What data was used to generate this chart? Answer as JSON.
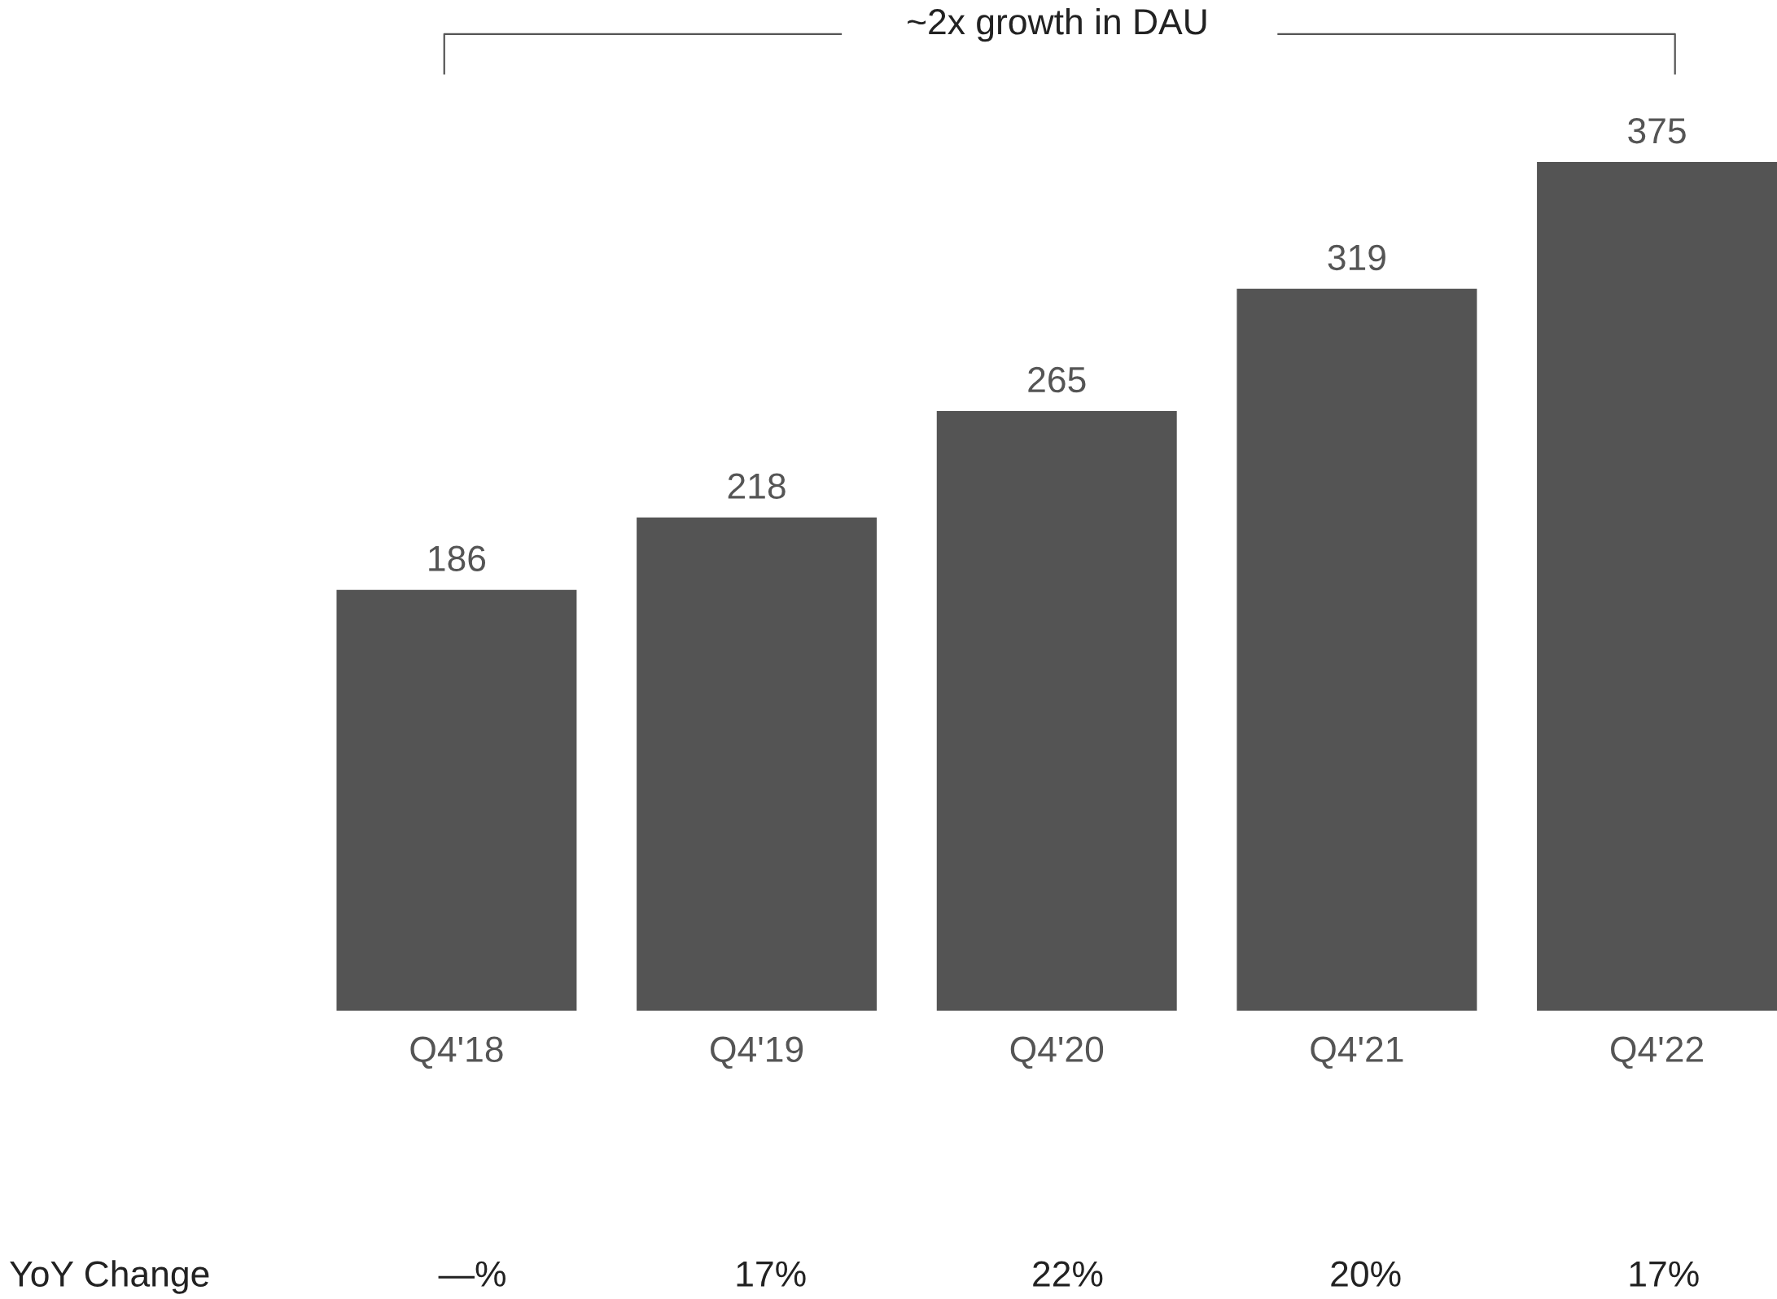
{
  "chart_data": {
    "type": "bar",
    "categories": [
      "Q4'18",
      "Q4'19",
      "Q4'20",
      "Q4'21",
      "Q4'22"
    ],
    "values": [
      186,
      218,
      265,
      319,
      375
    ],
    "color": "#545454",
    "data_labels": true,
    "annotations": [
      "~2x growth in DAU",
      "YoY Change",
      "—%",
      "17%",
      "22%",
      "20%",
      "17%"
    ]
  }
}
